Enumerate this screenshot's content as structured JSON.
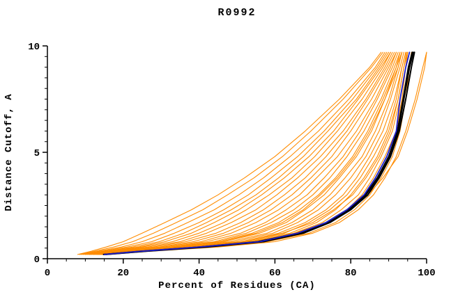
{
  "chart_data": {
    "type": "line",
    "title": "R0992",
    "xlabel": "Percent of Residues (CA)",
    "ylabel": "Distance Cutoff, A",
    "xlim": [
      0,
      100
    ],
    "ylim": [
      0,
      10
    ],
    "x_ticks": [
      0,
      20,
      40,
      60,
      80,
      100
    ],
    "y_ticks": [
      0,
      5,
      10
    ],
    "x_minor_step": 5,
    "y_minor_step": 0.5,
    "grid": false,
    "legend": "none",
    "colors": {
      "orange": "#ff8c00",
      "black": "#000000",
      "blue": "#2020cc"
    },
    "line_widths": {
      "orange": 1.1,
      "black": 2.0,
      "blue": 1.8
    },
    "y_grid": [
      0.2,
      0.35,
      0.55,
      0.8,
      1.2,
      1.7,
      2.3,
      3.0,
      3.8,
      4.8,
      6.0,
      7.5,
      9.0,
      9.7
    ],
    "series": [
      {
        "color": "orange",
        "x": [
          15,
          26,
          44,
          58,
          69,
          76,
          81,
          85,
          88,
          91,
          93,
          94.5,
          95.5,
          96
        ]
      },
      {
        "color": "orange",
        "x": [
          15,
          26,
          42,
          56,
          67,
          74,
          79,
          83,
          86,
          89,
          92,
          93.5,
          94.5,
          95
        ]
      },
      {
        "color": "orange",
        "x": [
          14.5,
          25,
          41,
          55,
          65,
          72.5,
          77.5,
          82,
          85,
          88,
          91,
          93,
          94.5,
          95
        ]
      },
      {
        "color": "orange",
        "x": [
          14,
          25,
          40,
          53,
          64,
          71,
          76,
          80,
          83.5,
          87,
          90,
          92.5,
          94,
          95
        ]
      },
      {
        "color": "orange",
        "x": [
          14,
          25,
          39.5,
          52,
          62.5,
          69,
          74.5,
          79,
          82.5,
          86,
          89.5,
          92,
          93.5,
          94.5
        ]
      },
      {
        "color": "orange",
        "x": [
          14,
          24.5,
          38.5,
          51,
          61,
          68,
          73.5,
          78,
          81.5,
          85,
          88.5,
          91.5,
          93.5,
          94.5
        ]
      },
      {
        "color": "orange",
        "x": [
          13.5,
          24,
          37.5,
          49.5,
          59.5,
          66,
          71.5,
          76,
          80,
          84,
          87.5,
          90.5,
          93,
          94
        ]
      },
      {
        "color": "orange",
        "x": [
          13.5,
          23,
          36.5,
          48,
          58,
          64.5,
          70,
          74.5,
          78.5,
          83,
          86.5,
          90,
          92.5,
          93.5
        ]
      },
      {
        "color": "orange",
        "x": [
          13,
          23,
          35,
          46.5,
          56,
          63,
          68,
          73,
          77,
          81.5,
          85.5,
          89,
          92,
          93.5
        ]
      },
      {
        "color": "orange",
        "x": [
          13,
          22,
          34,
          45,
          54,
          61,
          66.5,
          71.5,
          76,
          80.5,
          84.5,
          88.5,
          92,
          93
        ]
      },
      {
        "color": "orange",
        "x": [
          12.5,
          21.5,
          33,
          44,
          52.5,
          59,
          65,
          70,
          74.5,
          79,
          83.5,
          88,
          91.5,
          93
        ]
      },
      {
        "color": "orange",
        "x": [
          12,
          21,
          32,
          42,
          51,
          57.5,
          63,
          68.5,
          73,
          78,
          82.5,
          87,
          91,
          92.5
        ]
      },
      {
        "color": "orange",
        "x": [
          12,
          20,
          30.5,
          40.5,
          48.5,
          55,
          61,
          66.5,
          71,
          76.5,
          81.5,
          86.5,
          90.5,
          92
        ]
      },
      {
        "color": "orange",
        "x": [
          11.5,
          19.5,
          29.5,
          38.5,
          46.5,
          53,
          59,
          64.5,
          69.5,
          75,
          80,
          85.5,
          90,
          92
        ]
      },
      {
        "color": "orange",
        "x": [
          11,
          18.5,
          28,
          36.5,
          44.5,
          51,
          57,
          62.5,
          68,
          73.5,
          79,
          84.5,
          89.5,
          91.5
        ]
      },
      {
        "color": "orange",
        "x": [
          11,
          18,
          26.5,
          35,
          42,
          48.5,
          55,
          60.5,
          66,
          72,
          78,
          84,
          89,
          91
        ]
      },
      {
        "color": "orange",
        "x": [
          10.5,
          17,
          25,
          33,
          40,
          46.5,
          52.5,
          58.5,
          64.5,
          70.5,
          76.5,
          83,
          88.5,
          90.5
        ]
      },
      {
        "color": "orange",
        "x": [
          10,
          16,
          24,
          31,
          38,
          44,
          50.5,
          56.5,
          62.5,
          69,
          75.5,
          82,
          88,
          90.5
        ]
      },
      {
        "color": "orange",
        "x": [
          10,
          15.5,
          22.5,
          29.5,
          36,
          42,
          48.5,
          55,
          61,
          67.5,
          74,
          81.5,
          87.5,
          90
        ]
      },
      {
        "color": "orange",
        "x": [
          9.5,
          14.5,
          21,
          27.5,
          33.5,
          40,
          46.5,
          53,
          59,
          66,
          73,
          80.5,
          87,
          89.5
        ]
      },
      {
        "color": "orange",
        "x": [
          9,
          13.5,
          19.5,
          25,
          31,
          37,
          44,
          50.5,
          57,
          64,
          71.5,
          79.5,
          86.5,
          89
        ]
      },
      {
        "color": "orange",
        "x": [
          8.5,
          12.5,
          17.5,
          22.5,
          28,
          34,
          41,
          47.5,
          54.5,
          62,
          69.5,
          78,
          85.5,
          88.5
        ]
      },
      {
        "color": "orange",
        "x": [
          8,
          11.5,
          15.5,
          20,
          25,
          31,
          38,
          45,
          52,
          60,
          68,
          77,
          85,
          88
        ]
      },
      {
        "color": "orange",
        "x": [
          14,
          24,
          39,
          52,
          62,
          70,
          75.5,
          80.5,
          84,
          87.5,
          90.5,
          92.5,
          94,
          94.7
        ]
      },
      {
        "color": "orange",
        "x": [
          13,
          22.5,
          34.5,
          46,
          55,
          62,
          67.5,
          72,
          76.5,
          81,
          85,
          89,
          92.5,
          93.5
        ]
      },
      {
        "color": "orange",
        "x": [
          16,
          27,
          45,
          60,
          70,
          77,
          82,
          86,
          89,
          92,
          94.5,
          97,
          99,
          100
        ]
      },
      {
        "color": "orange",
        "x": [
          14,
          23.5,
          38,
          54,
          65.5,
          73.5,
          79.5,
          84.5,
          88.5,
          92.5,
          95,
          97.5,
          99.5,
          100
        ]
      },
      {
        "color": "black",
        "x": [
          15.5,
          26,
          42,
          57,
          67.5,
          74.5,
          80,
          84.5,
          87.5,
          90.5,
          92.8,
          94.5,
          96,
          96.8
        ]
      },
      {
        "color": "black",
        "x": [
          14.8,
          24.5,
          40,
          55.5,
          66,
          73.5,
          79,
          83.8,
          87,
          90,
          92.3,
          93.8,
          95.2,
          96.2
        ]
      },
      {
        "color": "black",
        "x": [
          15,
          25.5,
          41,
          56,
          67,
          74,
          79.5,
          84,
          87.2,
          90.2,
          92.5,
          94,
          95.5,
          96.5
        ]
      },
      {
        "color": "blue",
        "x": [
          15,
          24.5,
          40,
          56,
          66,
          73.5,
          79,
          83.5,
          86.5,
          89.5,
          92,
          93,
          94.5,
          95.5
        ]
      }
    ]
  }
}
